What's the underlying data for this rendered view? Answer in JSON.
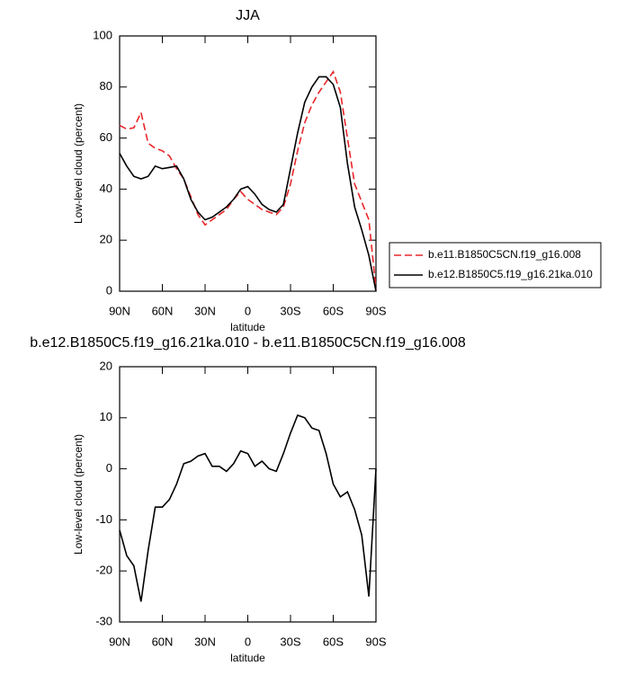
{
  "chart_data": [
    {
      "type": "line",
      "title": "JJA",
      "xlabel": "latitude",
      "ylabel": "Low-level cloud (percent)",
      "x": [
        90,
        85,
        80,
        75,
        70,
        65,
        60,
        55,
        50,
        45,
        40,
        35,
        30,
        25,
        20,
        15,
        10,
        5,
        0,
        -5,
        -10,
        -15,
        -20,
        -25,
        -30,
        -35,
        -40,
        -45,
        -50,
        -55,
        -60,
        -65,
        -70,
        -75,
        -80,
        -85,
        -90
      ],
      "series": [
        {
          "name": "b.e11.B1850C5CN.f19_g16.008",
          "color": "#e8262a",
          "line_style": "dashed",
          "values": [
            65,
            63.5,
            64,
            70,
            58,
            56,
            55,
            53,
            48,
            44,
            37,
            30,
            26,
            28,
            30,
            32,
            36,
            39,
            36,
            34,
            32,
            31,
            30,
            33,
            42,
            55,
            66,
            73,
            78,
            82,
            86,
            78,
            60,
            42,
            35,
            28,
            1
          ]
        },
        {
          "name": "b.e12.B1850C5.f19_g16.21ka.010",
          "color": "#000000",
          "line_style": "solid",
          "values": [
            54,
            49,
            45,
            44,
            45,
            49,
            48,
            48.5,
            49,
            44,
            36,
            31,
            28,
            29,
            31,
            33,
            36,
            40,
            41,
            38,
            34,
            32,
            31,
            34,
            48,
            62,
            74,
            80,
            84,
            84,
            81,
            72,
            50,
            33,
            24,
            14,
            0
          ]
        }
      ],
      "xlim": [
        90,
        -90
      ],
      "xticks": [
        {
          "value": 90,
          "label": "90N"
        },
        {
          "value": 60,
          "label": "60N"
        },
        {
          "value": 30,
          "label": "30N"
        },
        0,
        {
          "value": -30,
          "label": "30S"
        },
        {
          "value": -60,
          "label": "60S"
        },
        {
          "value": -90,
          "label": "90S"
        }
      ],
      "ylim": [
        0,
        100
      ],
      "yticks": [
        0,
        20,
        40,
        60,
        80,
        100
      ],
      "legend": "outside-right"
    },
    {
      "type": "line",
      "title": "b.e12.B1850C5.f19_g16.21ka.010 - b.e11.B1850C5CN.f19_g16.008",
      "xlabel": "latitude",
      "ylabel": "Low-level cloud (percent)",
      "x": [
        90,
        85,
        80,
        75,
        70,
        65,
        60,
        55,
        50,
        45,
        40,
        35,
        30,
        25,
        20,
        15,
        10,
        5,
        0,
        -5,
        -10,
        -15,
        -20,
        -25,
        -30,
        -35,
        -40,
        -45,
        -50,
        -55,
        -60,
        -65,
        -70,
        -75,
        -80,
        -85,
        -90
      ],
      "values": [
        -12,
        -17,
        -19,
        -26,
        -16,
        -7.5,
        -7.5,
        -6,
        -3,
        1,
        1.5,
        2.5,
        3,
        0.5,
        0.5,
        -0.5,
        1,
        3.5,
        3,
        0.5,
        1.5,
        0,
        -0.5,
        3,
        7,
        10.5,
        10,
        8,
        7.5,
        3,
        -3,
        -5.5,
        -4.5,
        -8,
        -13,
        -25,
        0
      ],
      "color": "#000000",
      "xlim": [
        90,
        -90
      ],
      "xticks": [
        {
          "value": 90,
          "label": "90N"
        },
        {
          "value": 60,
          "label": "60N"
        },
        {
          "value": 30,
          "label": "30N"
        },
        0,
        {
          "value": -30,
          "label": "30S"
        },
        {
          "value": -60,
          "label": "60S"
        },
        {
          "value": -90,
          "label": "90S"
        }
      ],
      "ylim": [
        -30,
        20
      ],
      "yticks": [
        -30,
        -20,
        -10,
        0,
        10,
        20
      ]
    }
  ]
}
